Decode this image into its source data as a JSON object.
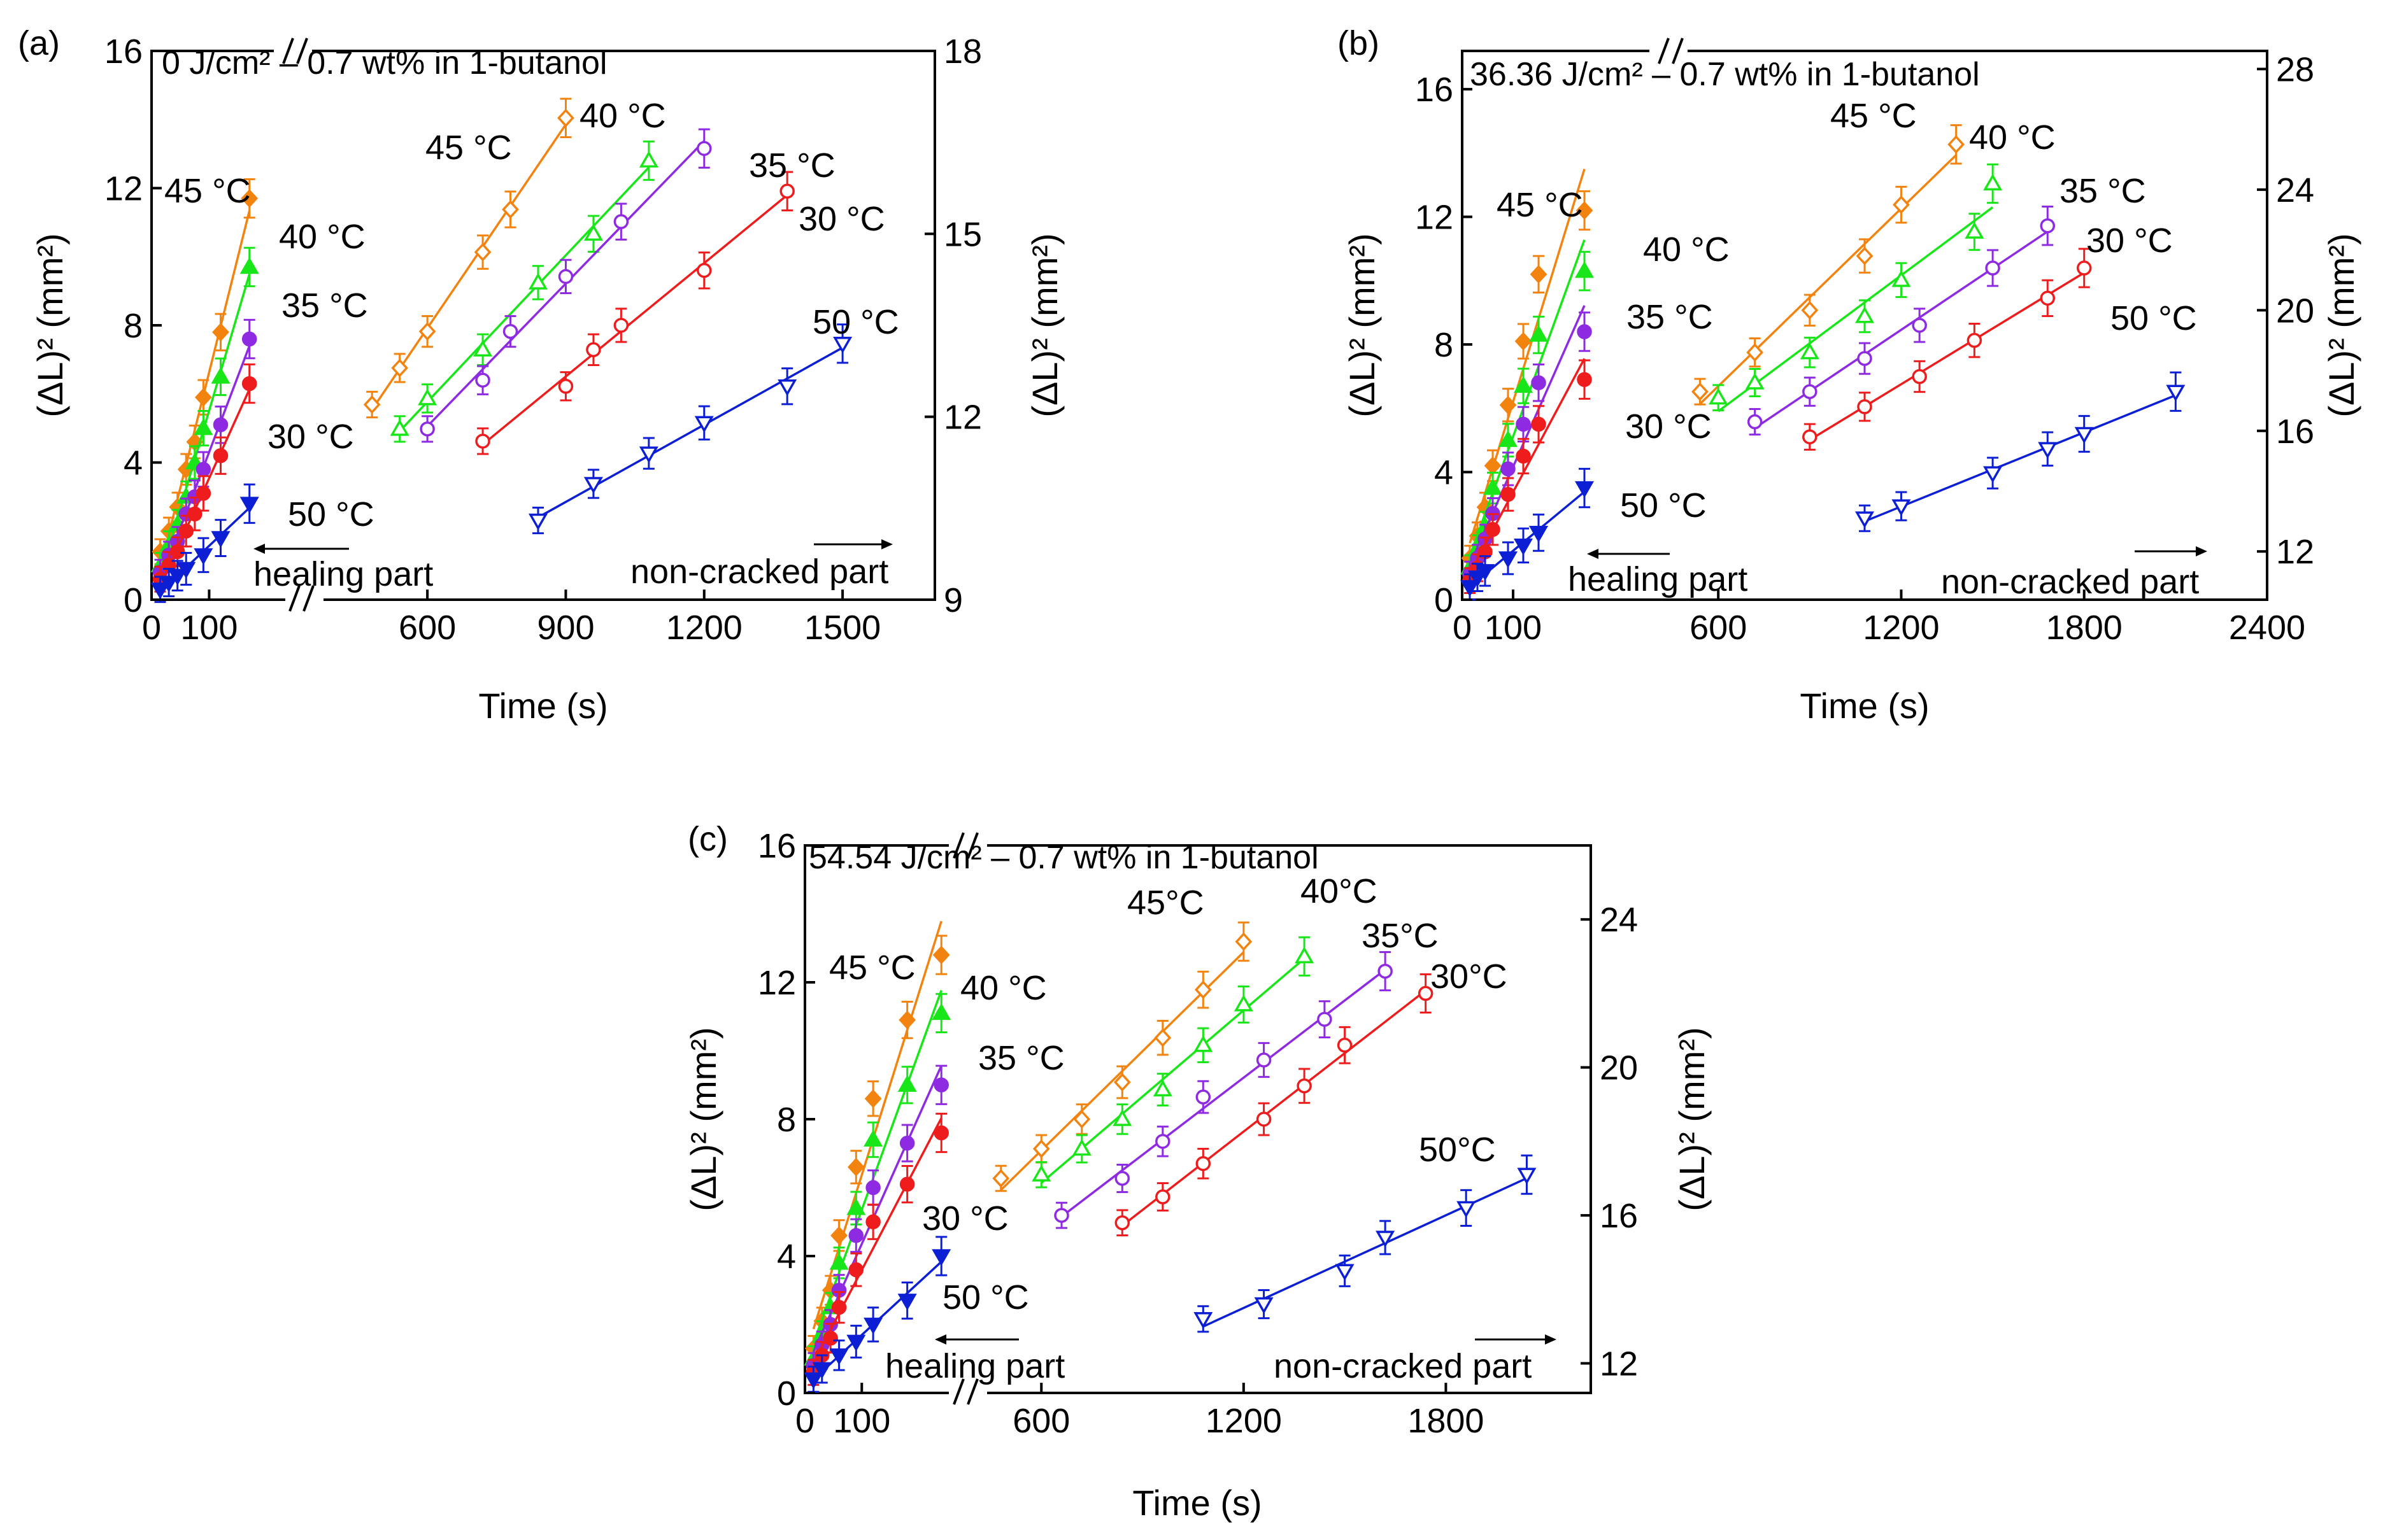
{
  "figure": {
    "series_colors": {
      "30": "#ee1c1c",
      "35": "#8e2be2",
      "40": "#19e619",
      "45": "#f3830f",
      "50": "#0c1fd4"
    }
  },
  "chart_data": [
    {
      "type": "scatter",
      "panel_label": "(a)",
      "title": "0 J/cm² – 0.7 wt% in 1-butanol",
      "xlabel": "Time (s)",
      "ylabel_left": "(ΔL)² (mm²)",
      "ylabel_right": "(ΔL)² (mm²)",
      "left_segment": {
        "xlim": [
          0,
          240
        ],
        "xticks": [
          0,
          100
        ],
        "xticklabels": [
          "0",
          "100"
        ]
      },
      "right_segment": {
        "xlim": [
          350,
          1700
        ],
        "xticks": [
          600,
          900,
          1200,
          1500
        ],
        "xticklabels": [
          "600",
          "900",
          "1200",
          "1500"
        ]
      },
      "ylim_left": [
        0,
        16
      ],
      "yticks_left": [
        "0",
        "4",
        "8",
        "12",
        "16"
      ],
      "ylim_right": [
        9,
        18
      ],
      "yticks_right": [
        "9",
        "12",
        "15",
        "18"
      ],
      "arrow_left_label": "healing part",
      "arrow_right_label": "non-cracked part",
      "healing_series": [
        {
          "name": "45 °C",
          "temp": "45",
          "x": [
            15,
            30,
            45,
            60,
            75,
            90,
            120,
            170
          ],
          "y": [
            1.4,
            2.0,
            2.7,
            3.8,
            4.6,
            5.9,
            7.8,
            11.7
          ]
        },
        {
          "name": "40 °C",
          "temp": "40",
          "x": [
            15,
            30,
            45,
            60,
            75,
            90,
            120,
            170
          ],
          "y": [
            1.0,
            1.6,
            2.2,
            3.0,
            4.0,
            5.0,
            6.5,
            9.7
          ]
        },
        {
          "name": "35 °C",
          "temp": "35",
          "x": [
            15,
            30,
            45,
            60,
            75,
            90,
            120,
            170
          ],
          "y": [
            0.8,
            1.3,
            1.7,
            2.5,
            3.0,
            3.8,
            5.1,
            7.6
          ]
        },
        {
          "name": "30 °C",
          "temp": "30",
          "x": [
            15,
            30,
            45,
            60,
            75,
            90,
            120,
            170
          ],
          "y": [
            0.6,
            1.0,
            1.4,
            2.0,
            2.5,
            3.1,
            4.2,
            6.3
          ]
        },
        {
          "name": "50 °C",
          "temp": "50",
          "x": [
            15,
            30,
            45,
            60,
            90,
            120,
            170
          ],
          "y": [
            0.3,
            0.5,
            0.7,
            0.9,
            1.3,
            1.8,
            2.8
          ]
        }
      ],
      "noncracked_series": [
        {
          "name": "45 °C",
          "temp": "45",
          "x": [
            480,
            540,
            600,
            720,
            780,
            900
          ],
          "y": [
            12.2,
            12.8,
            13.4,
            14.7,
            15.4,
            16.9
          ]
        },
        {
          "name": "40 °C",
          "temp": "40",
          "x": [
            540,
            600,
            720,
            840,
            960,
            1080
          ],
          "y": [
            11.8,
            12.3,
            13.1,
            14.2,
            15.0,
            16.2
          ]
        },
        {
          "name": "35 °C",
          "temp": "35",
          "x": [
            600,
            720,
            780,
            900,
            1020,
            1200
          ],
          "y": [
            11.8,
            12.6,
            13.4,
            14.3,
            15.2,
            16.4
          ]
        },
        {
          "name": "30 °C",
          "temp": "30",
          "x": [
            720,
            900,
            960,
            1020,
            1200,
            1380
          ],
          "y": [
            11.6,
            12.5,
            13.1,
            13.5,
            14.4,
            15.7
          ]
        },
        {
          "name": "50 °C",
          "temp": "50",
          "x": [
            840,
            960,
            1080,
            1200,
            1380,
            1500
          ],
          "y": [
            10.3,
            10.9,
            11.4,
            11.9,
            12.5,
            13.2
          ]
        }
      ]
    },
    {
      "type": "scatter",
      "panel_label": "(b)",
      "title": "36.36 J/cm² – 0.7 wt% in 1-butanol",
      "xlabel": "Time (s)",
      "ylabel_left": "(ΔL)² (mm²)",
      "ylabel_right": "(ΔL)² (mm²)",
      "left_segment": {
        "xlim": [
          0,
          330
        ],
        "xticks": [
          0,
          100
        ],
        "xticklabels": [
          "0",
          "100"
        ]
      },
      "right_segment": {
        "xlim": [
          420,
          2400
        ],
        "xticks": [
          600,
          1200,
          1800,
          2400
        ],
        "xticklabels": [
          "600",
          "1200",
          "1800",
          "2400"
        ]
      },
      "ylim_left": [
        0,
        17.2
      ],
      "yticks_left": [
        "0",
        "4",
        "8",
        "12",
        "16"
      ],
      "ylim_right": [
        10.4,
        28.6
      ],
      "yticks_right": [
        "12",
        "16",
        "20",
        "24",
        "28"
      ],
      "arrow_left_label": "healing part",
      "arrow_right_label": "non-cracked part",
      "healing_series": [
        {
          "name": "45 °C",
          "temp": "45",
          "x": [
            15,
            30,
            45,
            60,
            90,
            120,
            150,
            240
          ],
          "y": [
            1.3,
            2.0,
            2.9,
            4.2,
            6.1,
            8.1,
            10.2,
            12.2
          ]
        },
        {
          "name": "40 °C",
          "temp": "40",
          "x": [
            15,
            30,
            45,
            60,
            90,
            120,
            150,
            240
          ],
          "y": [
            1.0,
            1.6,
            2.3,
            3.5,
            5.0,
            6.7,
            8.3,
            10.3
          ]
        },
        {
          "name": "35 °C",
          "temp": "35",
          "x": [
            15,
            30,
            45,
            60,
            90,
            120,
            150,
            240
          ],
          "y": [
            0.8,
            1.3,
            1.9,
            2.7,
            4.1,
            5.5,
            6.8,
            8.4
          ]
        },
        {
          "name": "30 °C",
          "temp": "30",
          "x": [
            15,
            30,
            45,
            60,
            90,
            120,
            150,
            240
          ],
          "y": [
            0.6,
            1.0,
            1.5,
            2.2,
            3.3,
            4.5,
            5.5,
            6.9
          ]
        },
        {
          "name": "50 °C",
          "temp": "50",
          "x": [
            15,
            30,
            45,
            90,
            120,
            150,
            240
          ],
          "y": [
            0.4,
            0.7,
            0.9,
            1.3,
            1.7,
            2.1,
            3.5
          ]
        }
      ],
      "noncracked_series": [
        {
          "name": "45 °C",
          "temp": "45",
          "x": [
            540,
            720,
            900,
            1080,
            1200,
            1380
          ],
          "y": [
            17.3,
            18.6,
            20.0,
            21.8,
            23.5,
            25.5
          ]
        },
        {
          "name": "40 °C",
          "temp": "40",
          "x": [
            600,
            720,
            900,
            1080,
            1200,
            1440,
            1500
          ],
          "y": [
            17.1,
            17.6,
            18.6,
            19.8,
            21.0,
            22.6,
            24.2
          ]
        },
        {
          "name": "35 °C",
          "temp": "35",
          "x": [
            720,
            900,
            1080,
            1260,
            1500,
            1680
          ],
          "y": [
            16.3,
            17.3,
            18.4,
            19.5,
            21.4,
            22.8
          ]
        },
        {
          "name": "30 °C",
          "temp": "30",
          "x": [
            900,
            1080,
            1260,
            1440,
            1680,
            1800
          ],
          "y": [
            15.8,
            16.8,
            17.8,
            19.0,
            20.4,
            21.4
          ]
        },
        {
          "name": "50 °C",
          "temp": "50",
          "x": [
            1080,
            1200,
            1500,
            1680,
            1800,
            2100
          ],
          "y": [
            13.1,
            13.5,
            14.6,
            15.4,
            15.9,
            17.3
          ]
        }
      ]
    },
    {
      "type": "scatter",
      "panel_label": "(c)",
      "title": "54.54 J/cm² – 0.7 wt% in 1-butanol",
      "xlabel": "Time (s)",
      "ylabel_left": "(ΔL)² (mm²)",
      "ylabel_right": "(ΔL)² (mm²)",
      "left_segment": {
        "xlim": [
          0,
          270
        ],
        "xticks": [
          0,
          100
        ],
        "xticklabels": [
          "0",
          "100"
        ]
      },
      "right_segment": {
        "xlim": [
          420,
          2230
        ],
        "xticks": [
          600,
          1200,
          1800
        ],
        "xticklabels": [
          "600",
          "1200",
          "1800"
        ]
      },
      "ylim_left": [
        0,
        16
      ],
      "yticks_left": [
        "0",
        "4",
        "8",
        "12",
        "16"
      ],
      "ylim_right": [
        11.2,
        26
      ],
      "yticks_right": [
        "12",
        "16",
        "20",
        "24"
      ],
      "arrow_left_label": "healing part",
      "arrow_right_label": "non-cracked part",
      "healing_series": [
        {
          "name": "45 °C",
          "temp": "45",
          "x": [
            15,
            30,
            45,
            60,
            90,
            120,
            180,
            240
          ],
          "y": [
            1.3,
            2.1,
            3.0,
            4.6,
            6.6,
            8.6,
            10.9,
            12.8
          ]
        },
        {
          "name": "40 °C",
          "temp": "40",
          "x": [
            15,
            30,
            45,
            60,
            90,
            120,
            180,
            240
          ],
          "y": [
            1.0,
            1.7,
            2.5,
            3.8,
            5.4,
            7.4,
            9.0,
            11.1
          ]
        },
        {
          "name": "35 °C",
          "temp": "35",
          "x": [
            15,
            30,
            45,
            60,
            90,
            120,
            180,
            240
          ],
          "y": [
            0.8,
            1.4,
            2.0,
            3.0,
            4.6,
            6.0,
            7.3,
            9.0
          ]
        },
        {
          "name": "30 °C",
          "temp": "30",
          "x": [
            15,
            30,
            45,
            60,
            90,
            120,
            180,
            240
          ],
          "y": [
            0.6,
            1.1,
            1.6,
            2.5,
            3.6,
            5.0,
            6.1,
            7.6
          ]
        },
        {
          "name": "50 °C",
          "temp": "50",
          "x": [
            15,
            30,
            60,
            90,
            120,
            180,
            240
          ],
          "y": [
            0.4,
            0.7,
            1.1,
            1.5,
            2.0,
            2.7,
            4.0
          ]
        }
      ],
      "noncracked_series": [
        {
          "name": "45°C",
          "temp": "45",
          "x": [
            480,
            600,
            720,
            840,
            960,
            1080,
            1200
          ],
          "y": [
            17.0,
            17.8,
            18.6,
            19.6,
            20.8,
            22.1,
            23.4
          ]
        },
        {
          "name": "40°C",
          "temp": "40",
          "x": [
            600,
            720,
            840,
            960,
            1080,
            1200,
            1380
          ],
          "y": [
            17.1,
            17.8,
            18.6,
            19.4,
            20.6,
            21.7,
            23.0
          ]
        },
        {
          "name": "35°C",
          "temp": "35",
          "x": [
            660,
            840,
            960,
            1080,
            1260,
            1440,
            1620
          ],
          "y": [
            16.0,
            17.0,
            18.0,
            19.2,
            20.2,
            21.3,
            22.6
          ]
        },
        {
          "name": "30°C",
          "temp": "30",
          "x": [
            840,
            960,
            1080,
            1260,
            1380,
            1500,
            1740
          ],
          "y": [
            15.8,
            16.5,
            17.4,
            18.6,
            19.5,
            20.6,
            22.0
          ]
        },
        {
          "name": "50°C",
          "temp": "50",
          "x": [
            1080,
            1260,
            1500,
            1620,
            1860,
            2040
          ],
          "y": [
            13.2,
            13.6,
            14.5,
            15.4,
            16.2,
            17.1
          ]
        }
      ]
    }
  ]
}
